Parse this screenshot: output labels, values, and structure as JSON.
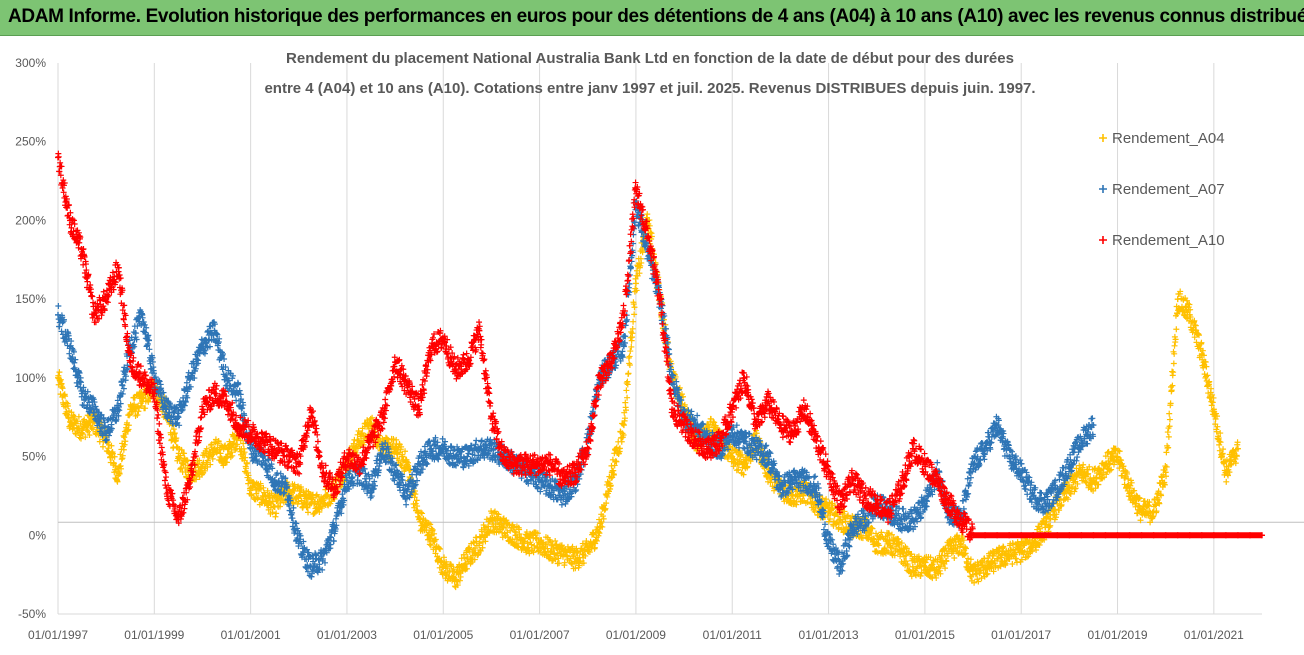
{
  "header": {
    "title": "ADAM Informe. Evolution historique des performances en euros pour des détentions de 4 ans (A04) à 10 ans (A10) avec les revenus connus distribués",
    "background": "#7dc473"
  },
  "chart_data": {
    "type": "scatter",
    "title_line1": "Rendement du placement National Australia Bank Ltd en fonction de la date de début pour des durées",
    "title_line2": "entre 4 (A04) et 10 ans (A10).  Cotations entre janv 1997 et juil. 2025. Revenus DISTRIBUES depuis juin. 1997.",
    "x_tick_labels": [
      "01/01/1997",
      "01/01/1999",
      "01/01/2001",
      "01/01/2003",
      "01/01/2005",
      "01/01/2007",
      "01/01/2009",
      "01/01/2011",
      "01/01/2013",
      "01/01/2015",
      "01/01/2017",
      "01/01/2019",
      "01/01/2021"
    ],
    "xlim": [
      "1997-01-01",
      "2022-01-01"
    ],
    "y_tick_labels": [
      "-50%",
      "0%",
      "50%",
      "100%",
      "150%",
      "200%",
      "250%",
      "300%"
    ],
    "ylim": [
      -50,
      300
    ],
    "y_unit": "%",
    "grid": "vertical lines at x ticks and a horizontal line at -50%",
    "marker": "+",
    "legend_position": "right",
    "series": [
      {
        "name": "Rendement_A04",
        "color": "#ffc000",
        "x": [
          "1997-01",
          "1997-04",
          "1997-07",
          "1997-10",
          "1998-01",
          "1998-04",
          "1998-07",
          "1998-10",
          "1999-01",
          "1999-04",
          "1999-07",
          "1999-10",
          "2000-01",
          "2000-04",
          "2000-07",
          "2000-10",
          "2001-01",
          "2001-04",
          "2001-07",
          "2001-10",
          "2002-01",
          "2002-04",
          "2002-07",
          "2002-10",
          "2003-01",
          "2003-04",
          "2003-07",
          "2003-10",
          "2004-01",
          "2004-04",
          "2004-07",
          "2004-10",
          "2005-01",
          "2005-04",
          "2005-07",
          "2005-10",
          "2006-01",
          "2006-04",
          "2006-07",
          "2006-10",
          "2007-01",
          "2007-04",
          "2007-07",
          "2007-10",
          "2008-01",
          "2008-04",
          "2008-07",
          "2008-10",
          "2009-01",
          "2009-04",
          "2009-07",
          "2009-10",
          "2010-01",
          "2010-04",
          "2010-07",
          "2010-10",
          "2011-01",
          "2011-04",
          "2011-07",
          "2011-10",
          "2012-01",
          "2012-04",
          "2012-07",
          "2012-10",
          "2013-01",
          "2013-04",
          "2013-07",
          "2013-10",
          "2014-01",
          "2014-04",
          "2014-07",
          "2014-10",
          "2015-01",
          "2015-04",
          "2015-07",
          "2015-10",
          "2016-01",
          "2016-04",
          "2016-07",
          "2016-10",
          "2017-01",
          "2017-04",
          "2017-07",
          "2017-10",
          "2018-01",
          "2018-04",
          "2018-07",
          "2018-10",
          "2019-01",
          "2019-04",
          "2019-07",
          "2019-10",
          "2020-01",
          "2020-04",
          "2020-07",
          "2020-10",
          "2021-01",
          "2021-04",
          "2021-07"
        ],
        "y": [
          100,
          72,
          68,
          72,
          60,
          38,
          80,
          85,
          95,
          78,
          50,
          40,
          45,
          55,
          50,
          65,
          30,
          25,
          18,
          28,
          25,
          20,
          22,
          30,
          45,
          60,
          70,
          55,
          55,
          45,
          10,
          0,
          -20,
          -28,
          -15,
          -5,
          10,
          5,
          0,
          -5,
          -5,
          -10,
          -12,
          -15,
          -10,
          5,
          40,
          70,
          160,
          200,
          150,
          100,
          80,
          60,
          70,
          60,
          50,
          45,
          60,
          40,
          30,
          25,
          28,
          20,
          15,
          10,
          5,
          5,
          -5,
          -5,
          -10,
          -20,
          -20,
          -22,
          -10,
          -5,
          -25,
          -20,
          -15,
          -12,
          -10,
          -5,
          5,
          20,
          30,
          40,
          35,
          45,
          50,
          30,
          15,
          15,
          40,
          150,
          140,
          115,
          80,
          40,
          55
        ]
      },
      {
        "name": "Rendement_A07",
        "color": "#2e75b6",
        "x": [
          "1997-01",
          "1997-04",
          "1997-07",
          "1997-10",
          "1998-01",
          "1998-04",
          "1998-07",
          "1998-10",
          "1999-01",
          "1999-04",
          "1999-07",
          "1999-10",
          "2000-01",
          "2000-04",
          "2000-07",
          "2000-10",
          "2001-01",
          "2001-04",
          "2001-07",
          "2001-10",
          "2002-01",
          "2002-04",
          "2002-07",
          "2002-10",
          "2003-01",
          "2003-04",
          "2003-07",
          "2003-10",
          "2004-01",
          "2004-04",
          "2004-07",
          "2004-10",
          "2005-01",
          "2005-04",
          "2005-07",
          "2005-10",
          "2006-01",
          "2006-04",
          "2006-07",
          "2006-10",
          "2007-01",
          "2007-04",
          "2007-07",
          "2007-10",
          "2008-01",
          "2008-04",
          "2008-07",
          "2008-10",
          "2009-01",
          "2009-04",
          "2009-07",
          "2009-10",
          "2010-01",
          "2010-04",
          "2010-07",
          "2010-10",
          "2011-01",
          "2011-04",
          "2011-07",
          "2011-10",
          "2012-01",
          "2012-04",
          "2012-07",
          "2012-10",
          "2013-01",
          "2013-04",
          "2013-07",
          "2013-10",
          "2014-01",
          "2014-04",
          "2014-07",
          "2014-10",
          "2015-01",
          "2015-04",
          "2015-07",
          "2015-10",
          "2016-01",
          "2016-04",
          "2016-07",
          "2016-10",
          "2017-01",
          "2017-04",
          "2017-07",
          "2017-10",
          "2018-01",
          "2018-04",
          "2018-07"
        ],
        "y": [
          140,
          120,
          90,
          80,
          65,
          80,
          120,
          140,
          100,
          80,
          75,
          100,
          120,
          130,
          100,
          90,
          55,
          50,
          35,
          30,
          -5,
          -20,
          -15,
          5,
          35,
          40,
          30,
          55,
          40,
          25,
          45,
          55,
          55,
          50,
          50,
          55,
          55,
          50,
          45,
          40,
          35,
          30,
          25,
          35,
          60,
          100,
          110,
          120,
          210,
          180,
          150,
          100,
          75,
          70,
          60,
          55,
          65,
          60,
          55,
          50,
          30,
          35,
          35,
          30,
          -5,
          -20,
          5,
          10,
          20,
          15,
          10,
          10,
          20,
          40,
          15,
          10,
          45,
          55,
          70,
          50,
          40,
          25,
          20,
          30,
          45,
          60,
          70
        ]
      },
      {
        "name": "Rendement_A10",
        "color": "#ff0000",
        "x": [
          "1997-01",
          "1997-04",
          "1997-07",
          "1997-10",
          "1998-01",
          "1998-04",
          "1998-07",
          "1998-10",
          "1999-01",
          "1999-04",
          "1999-07",
          "1999-10",
          "2000-01",
          "2000-04",
          "2000-07",
          "2000-10",
          "2001-01",
          "2001-04",
          "2001-07",
          "2001-10",
          "2002-01",
          "2002-04",
          "2002-07",
          "2002-10",
          "2003-01",
          "2003-04",
          "2003-07",
          "2003-10",
          "2004-01",
          "2004-04",
          "2004-07",
          "2004-10",
          "2005-01",
          "2005-04",
          "2005-07",
          "2005-10",
          "2006-01",
          "2006-04",
          "2006-07",
          "2006-10",
          "2007-01",
          "2007-04",
          "2007-07",
          "2007-10",
          "2008-01",
          "2008-04",
          "2008-07",
          "2008-10",
          "2009-01",
          "2009-04",
          "2009-07",
          "2009-10",
          "2010-01",
          "2010-04",
          "2010-07",
          "2010-10",
          "2011-01",
          "2011-04",
          "2011-07",
          "2011-10",
          "2012-01",
          "2012-04",
          "2012-07",
          "2012-10",
          "2013-01",
          "2013-04",
          "2013-07",
          "2013-10",
          "2014-01",
          "2014-04",
          "2014-07",
          "2014-10",
          "2015-01",
          "2015-04",
          "2015-07",
          "2015-10",
          "2016-01",
          "2016-04",
          "2016-07",
          "2016-10",
          "2017-01",
          "2017-04",
          "2017-07",
          "2017-10",
          "2018-01",
          "2018-04",
          "2018-07",
          "2018-10",
          "2019-01",
          "2019-04",
          "2019-07",
          "2019-10",
          "2020-01",
          "2020-04",
          "2020-07",
          "2020-10",
          "2021-01",
          "2021-04",
          "2021-07",
          "2021-10",
          "2022-01"
        ],
        "y": [
          240,
          200,
          180,
          140,
          150,
          170,
          110,
          100,
          90,
          30,
          10,
          35,
          80,
          90,
          85,
          70,
          65,
          60,
          55,
          50,
          45,
          80,
          40,
          30,
          50,
          45,
          60,
          75,
          110,
          95,
          80,
          120,
          125,
          105,
          110,
          130,
          75,
          50,
          45,
          45,
          45,
          45,
          35,
          40,
          55,
          100,
          110,
          140,
          220,
          190,
          150,
          80,
          70,
          60,
          55,
          60,
          80,
          100,
          70,
          85,
          70,
          65,
          80,
          60,
          40,
          20,
          35,
          25,
          20,
          15,
          30,
          55,
          45,
          35,
          20,
          10,
          0,
          0,
          0,
          0,
          0,
          0,
          0,
          0,
          0,
          0,
          0,
          0,
          0,
          0,
          0,
          0,
          0,
          0,
          0,
          0,
          0,
          0,
          0,
          0,
          0
        ]
      }
    ]
  }
}
